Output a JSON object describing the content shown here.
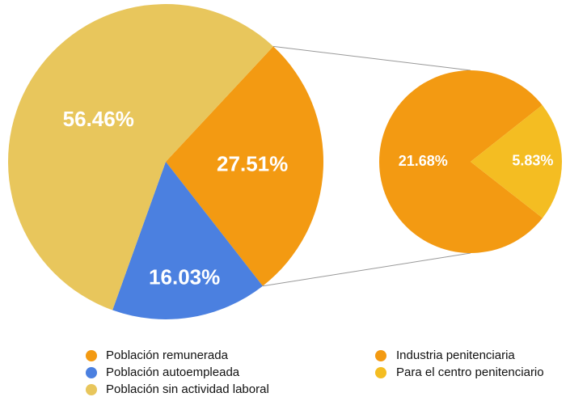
{
  "chart_data": {
    "type": "pie_of_pie",
    "main": {
      "categories": [
        "Población remunerada",
        "Población autoempleada",
        "Población sin actividad laboral"
      ],
      "values": [
        27.51,
        16.03,
        56.46
      ],
      "value_labels": [
        "27.51%",
        "16.03%",
        "56.46%"
      ],
      "colors": [
        "#f39a12",
        "#4b80e0",
        "#e8c65c"
      ]
    },
    "secondary": {
      "categories": [
        "Industria penitenciaria",
        "Para el centro penitenciario"
      ],
      "values": [
        21.68,
        5.83
      ],
      "value_labels": [
        "21.68%",
        "5.83%"
      ],
      "colors": [
        "#f39a12",
        "#f4bd22"
      ]
    }
  }
}
